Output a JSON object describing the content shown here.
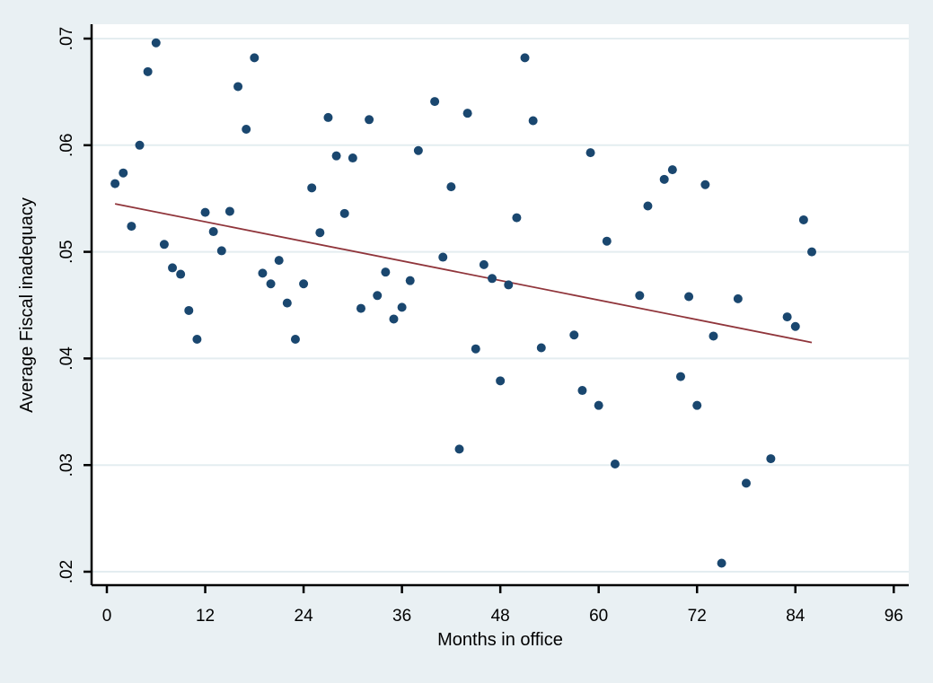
{
  "figure": {
    "background_color": "#e9f0f3",
    "plot_background_color": "#ffffff",
    "grid_color": "#e4edf0",
    "marker_color": "#1a476f",
    "fit_line_color": "#90353b",
    "axis_color": "#000000"
  },
  "chart_data": {
    "type": "scatter",
    "title": "",
    "xlabel": "Months in office",
    "ylabel": "Average Fiscal inadequacy",
    "xlim": [
      -2,
      98
    ],
    "ylim": [
      0.0187,
      0.0713
    ],
    "x_ticks": [
      0,
      12,
      24,
      36,
      48,
      60,
      72,
      84,
      96
    ],
    "x_tick_labels": [
      "0",
      "12",
      "24",
      "36",
      "48",
      "60",
      "72",
      "84",
      "96"
    ],
    "y_ticks": [
      0.02,
      0.03,
      0.04,
      0.05,
      0.06,
      0.07
    ],
    "y_tick_labels": [
      ".02",
      ".03",
      ".04",
      ".05",
      ".06",
      ".07"
    ],
    "grid": "horizontal",
    "legend": "none",
    "series": [
      {
        "name": "scatter-points",
        "marker": "circle",
        "points": [
          [
            1,
            0.0564
          ],
          [
            2,
            0.0574
          ],
          [
            3,
            0.0524
          ],
          [
            4,
            0.06
          ],
          [
            5,
            0.0669
          ],
          [
            6,
            0.0696
          ],
          [
            7,
            0.0507
          ],
          [
            8,
            0.0485
          ],
          [
            9,
            0.0479
          ],
          [
            10,
            0.0445
          ],
          [
            11,
            0.0418
          ],
          [
            12,
            0.0537
          ],
          [
            13,
            0.0519
          ],
          [
            14,
            0.0501
          ],
          [
            15,
            0.0538
          ],
          [
            16,
            0.0655
          ],
          [
            17,
            0.0615
          ],
          [
            18,
            0.0682
          ],
          [
            19,
            0.048
          ],
          [
            20,
            0.047
          ],
          [
            21,
            0.0492
          ],
          [
            22,
            0.0452
          ],
          [
            23,
            0.0418
          ],
          [
            24,
            0.047
          ],
          [
            25,
            0.056
          ],
          [
            26,
            0.0518
          ],
          [
            27,
            0.0626
          ],
          [
            28,
            0.059
          ],
          [
            29,
            0.0536
          ],
          [
            30,
            0.0588
          ],
          [
            31,
            0.0447
          ],
          [
            32,
            0.0624
          ],
          [
            33,
            0.0459
          ],
          [
            34,
            0.0481
          ],
          [
            35,
            0.0437
          ],
          [
            36,
            0.0448
          ],
          [
            37,
            0.0473
          ],
          [
            38,
            0.0595
          ],
          [
            40,
            0.0641
          ],
          [
            41,
            0.0495
          ],
          [
            42,
            0.0561
          ],
          [
            43,
            0.0315
          ],
          [
            44,
            0.063
          ],
          [
            45,
            0.0409
          ],
          [
            46,
            0.0488
          ],
          [
            47,
            0.0475
          ],
          [
            48,
            0.0379
          ],
          [
            49,
            0.0469
          ],
          [
            50,
            0.0532
          ],
          [
            51,
            0.0682
          ],
          [
            52,
            0.0623
          ],
          [
            53,
            0.041
          ],
          [
            57,
            0.0422
          ],
          [
            58,
            0.037
          ],
          [
            59,
            0.0593
          ],
          [
            60,
            0.0356
          ],
          [
            61,
            0.051
          ],
          [
            62,
            0.0301
          ],
          [
            65,
            0.0459
          ],
          [
            66,
            0.0543
          ],
          [
            68,
            0.0568
          ],
          [
            69,
            0.0577
          ],
          [
            70,
            0.0383
          ],
          [
            71,
            0.0458
          ],
          [
            72,
            0.0356
          ],
          [
            73,
            0.0563
          ],
          [
            74,
            0.0421
          ],
          [
            75,
            0.0208
          ],
          [
            77,
            0.0456
          ],
          [
            78,
            0.0283
          ],
          [
            81,
            0.0306
          ],
          [
            83,
            0.0439
          ],
          [
            84,
            0.043
          ],
          [
            85,
            0.053
          ],
          [
            86,
            0.05
          ]
        ]
      },
      {
        "name": "linear-fit",
        "marker": "line",
        "fit_line": {
          "x_start": 1,
          "y_start": 0.0545,
          "x_end": 86,
          "y_end": 0.0415
        }
      }
    ]
  }
}
